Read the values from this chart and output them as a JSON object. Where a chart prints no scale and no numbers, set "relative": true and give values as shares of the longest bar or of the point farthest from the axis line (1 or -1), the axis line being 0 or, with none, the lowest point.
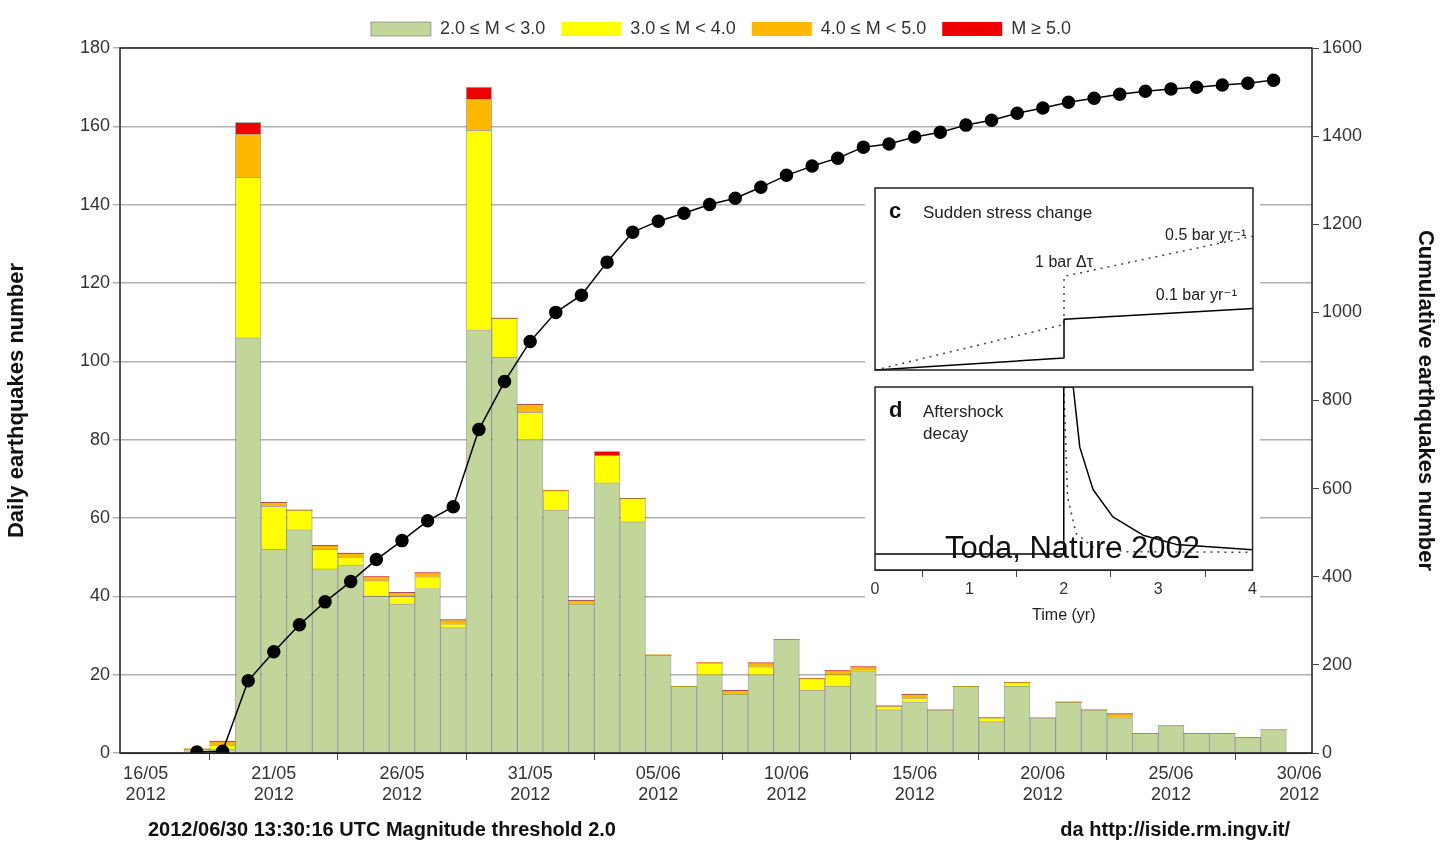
{
  "chart_data": [
    {
      "type": "bar",
      "stacked": true,
      "ylabel": "Daily earthquakes number",
      "y2label": "Cumulative earthquakes number",
      "x": [
        "2012-05-18",
        "2012-05-19",
        "2012-05-20",
        "2012-05-21",
        "2012-05-22",
        "2012-05-23",
        "2012-05-24",
        "2012-05-25",
        "2012-05-26",
        "2012-05-27",
        "2012-05-28",
        "2012-05-29",
        "2012-05-30",
        "2012-05-31",
        "2012-06-01",
        "2012-06-02",
        "2012-06-03",
        "2012-06-04",
        "2012-06-05",
        "2012-06-06",
        "2012-06-07",
        "2012-06-08",
        "2012-06-09",
        "2012-06-10",
        "2012-06-11",
        "2012-06-12",
        "2012-06-13",
        "2012-06-14",
        "2012-06-15",
        "2012-06-16",
        "2012-06-17",
        "2012-06-18",
        "2012-06-19",
        "2012-06-20",
        "2012-06-21",
        "2012-06-22",
        "2012-06-23",
        "2012-06-24",
        "2012-06-25",
        "2012-06-26",
        "2012-06-27",
        "2012-06-28",
        "2012-06-29"
      ],
      "series": [
        {
          "name": "2.0 ≤ M < 3.0",
          "color": "#c2d69b",
          "values": [
            1,
            1,
            106,
            52,
            57,
            47,
            48,
            40,
            38,
            42,
            32,
            108,
            101,
            80,
            62,
            38,
            69,
            59,
            25,
            17,
            20,
            15,
            20,
            29,
            16,
            17,
            21,
            11,
            13,
            11,
            17,
            8,
            17,
            9,
            13,
            11,
            9,
            5,
            7,
            5,
            5,
            4,
            6
          ]
        },
        {
          "name": "3.0 ≤ M < 4.0",
          "color": "#ffff00",
          "values": [
            0,
            1,
            41,
            11,
            5,
            5,
            2,
            4,
            2,
            3,
            1,
            51,
            10,
            7,
            5,
            0,
            7,
            6,
            0,
            0,
            3,
            0,
            2,
            0,
            3,
            3,
            0,
            1,
            1,
            0,
            0,
            1,
            1,
            0,
            0,
            0,
            0,
            0,
            0,
            0,
            0,
            0,
            0
          ]
        },
        {
          "name": "4.0 ≤ M < 5.0",
          "color": "#ffb800",
          "values": [
            0,
            1,
            11,
            1,
            0,
            1,
            1,
            1,
            1,
            1,
            1,
            8,
            0,
            2,
            0,
            1,
            0,
            0,
            0,
            0,
            0,
            1,
            1,
            0,
            0,
            1,
            1,
            0,
            1,
            0,
            0,
            0,
            0,
            0,
            0,
            0,
            1,
            0,
            0,
            0,
            0,
            0,
            0
          ]
        },
        {
          "name": "M ≥ 5.0",
          "color": "#ee0000",
          "values": [
            0,
            0,
            3,
            0,
            0,
            0,
            0,
            0,
            0,
            0,
            0,
            3,
            0,
            0,
            0,
            0,
            1,
            0,
            0,
            0,
            0,
            0,
            0,
            0,
            0,
            0,
            0,
            0,
            0,
            0,
            0,
            0,
            0,
            0,
            0,
            0,
            0,
            0,
            0,
            0,
            0,
            0,
            0
          ]
        },
        {
          "type": "line",
          "axis": "y2",
          "color": "#000000",
          "marker": "circle",
          "values": [
            2,
            4,
            164,
            230,
            291,
            343,
            389,
            439,
            482,
            527,
            559,
            734,
            843,
            934,
            1000,
            1039,
            1114,
            1182,
            1207,
            1225,
            1245,
            1259,
            1284,
            1311,
            1332,
            1350,
            1375,
            1382,
            1398,
            1409,
            1425,
            1436,
            1452,
            1464,
            1477,
            1486,
            1495,
            1502,
            1507,
            1511,
            1516,
            1520,
            1527
          ]
        }
      ],
      "xlim": [
        "2012-05-15",
        "2012-06-30T12:00"
      ],
      "xticks": [
        {
          "value": "2012-05-16",
          "label": "16/05 2012"
        },
        {
          "value": "2012-05-21",
          "label": "21/05 2012"
        },
        {
          "value": "2012-05-26",
          "label": "26/05 2012"
        },
        {
          "value": "2012-05-31",
          "label": "31/05 2012"
        },
        {
          "value": "2012-06-05",
          "label": "05/06 2012"
        },
        {
          "value": "2012-06-10",
          "label": "10/06 2012"
        },
        {
          "value": "2012-06-15",
          "label": "15/06 2012"
        },
        {
          "value": "2012-06-20",
          "label": "20/06 2012"
        },
        {
          "value": "2012-06-25",
          "label": "25/06 2012"
        },
        {
          "value": "2012-06-30",
          "label": "30/06 2012"
        }
      ],
      "ylim": [
        0,
        180
      ],
      "yticks": [
        0,
        20,
        40,
        60,
        80,
        100,
        120,
        140,
        160,
        180
      ],
      "y2lim": [
        0,
        1600
      ],
      "y2ticks": [
        0,
        200,
        400,
        600,
        800,
        1000,
        1200,
        1400,
        1600
      ],
      "grid": "y",
      "legend": "top",
      "annotations": [
        "2012/06/30 13:30:16 UTC Magnitude threshold 2.0",
        "da http://iside.rm.ingv.it/",
        "Toda, Nature 2002"
      ]
    },
    {
      "type": "line",
      "relative": true,
      "title": "Sudden stress change",
      "xlim": [
        0,
        4
      ],
      "tick_labels": false,
      "series": [
        {
          "color": "#000000",
          "line_style": "solid",
          "x": [
            0,
            2,
            2,
            4
          ],
          "values": [
            0,
            0.09,
            0.38,
            0.46
          ]
        },
        {
          "color": "#444444",
          "line_style": "dotted",
          "x": [
            0,
            2,
            2,
            4
          ],
          "values": [
            0,
            0.34,
            0.7,
            1
          ]
        }
      ],
      "annotations": [
        "c",
        {
          "text": "1 bar Δτ",
          "x": 2,
          "y": 0.7
        },
        {
          "text": "0.5 bar yr⁻¹",
          "x": 3.5,
          "y": 0.9
        },
        {
          "text": "0.1 bar yr⁻¹",
          "x": 3.4,
          "y": 0.45
        }
      ]
    },
    {
      "type": "line",
      "relative": true,
      "title": "Aftershock decay",
      "xlabel": "Time (yr)",
      "xlim": [
        0,
        4
      ],
      "xticks": [
        0,
        1,
        2,
        3,
        4
      ],
      "tick_labels": "x",
      "series": [
        {
          "color": "#000000",
          "line_style": "solid",
          "x": [
            0,
            2,
            2,
            2.1,
            2.17,
            2.31,
            2.52,
            2.84,
            3.19,
            4
          ],
          "values": [
            0.088,
            0.088,
            1,
            1,
            0.67,
            0.44,
            0.29,
            0.19,
            0.14,
            0.11
          ]
        },
        {
          "color": "#444444",
          "line_style": "dotted",
          "x": [
            2,
            2.04,
            2.13,
            2.31,
            2.66,
            4
          ],
          "values": [
            1,
            0.4,
            0.2,
            0.125,
            0.1,
            0.097
          ]
        }
      ],
      "annotations": [
        "d"
      ]
    }
  ]
}
